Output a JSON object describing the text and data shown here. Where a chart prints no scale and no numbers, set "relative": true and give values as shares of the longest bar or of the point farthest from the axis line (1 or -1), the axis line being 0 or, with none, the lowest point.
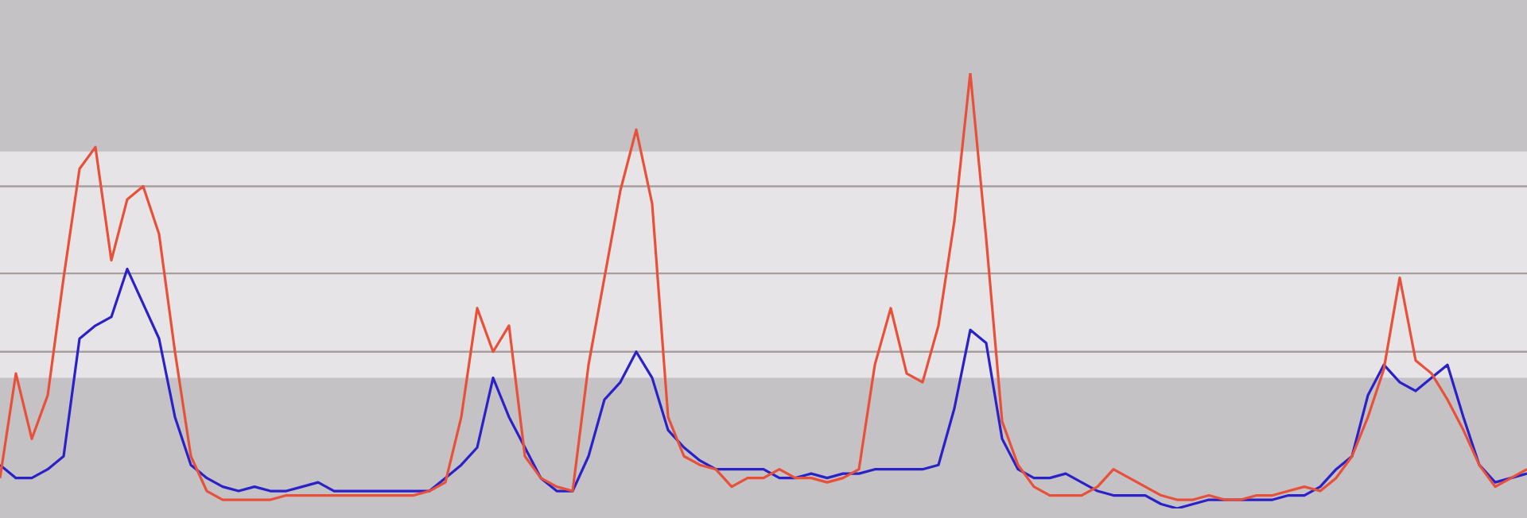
{
  "chart_data": {
    "type": "line",
    "relative": true,
    "legend": false,
    "marker": "none",
    "line_style": "solid",
    "categories": [
      null,
      null,
      null,
      null,
      null,
      null,
      null,
      null,
      null,
      null,
      null,
      null,
      null,
      null,
      null,
      null,
      null,
      null,
      null,
      null,
      null,
      null,
      null,
      null,
      null,
      null,
      null,
      null,
      null,
      null,
      null,
      null,
      null,
      null,
      null,
      null,
      null,
      null,
      null,
      null,
      null,
      null,
      null,
      null,
      null,
      null,
      null,
      null,
      null,
      null,
      null,
      null,
      null,
      null,
      null,
      null,
      null,
      null,
      null,
      null,
      null,
      null,
      null,
      null,
      null,
      null,
      null,
      null,
      null,
      null,
      null,
      null,
      null,
      null,
      null,
      null,
      null,
      null,
      null,
      null,
      null,
      null,
      null,
      null,
      null,
      null,
      null,
      null,
      null,
      null,
      null,
      null,
      null,
      null,
      null,
      null,
      null
    ],
    "series": [
      {
        "color": "#e8503a",
        "values": [
          0.07,
          0.31,
          0.16,
          0.26,
          0.53,
          0.78,
          0.83,
          0.57,
          0.71,
          0.74,
          0.63,
          0.36,
          0.12,
          0.04,
          0.02,
          0.02,
          0.02,
          0.02,
          0.03,
          0.03,
          0.03,
          0.03,
          0.03,
          0.03,
          0.03,
          0.03,
          0.03,
          0.04,
          0.06,
          0.21,
          0.46,
          0.36,
          0.42,
          0.12,
          0.07,
          0.05,
          0.04,
          0.33,
          0.53,
          0.73,
          0.87,
          0.7,
          0.21,
          0.12,
          0.1,
          0.09,
          0.05,
          0.07,
          0.07,
          0.09,
          0.07,
          0.07,
          0.06,
          0.07,
          0.09,
          0.33,
          0.46,
          0.31,
          0.29,
          0.42,
          0.66,
          1,
          0.62,
          0.2,
          0.1,
          0.05,
          0.03,
          0.03,
          0.03,
          0.05,
          0.09,
          0.07,
          0.05,
          0.03,
          0.02,
          0.02,
          0.03,
          0.02,
          0.02,
          0.03,
          0.03,
          0.04,
          0.05,
          0.04,
          0.07,
          0.12,
          0.21,
          0.32,
          0.53,
          0.34,
          0.31,
          0.25,
          0.18,
          0.1,
          0.05,
          0.07,
          0.09
        ]
      },
      {
        "color": "#2a22c8",
        "values": [
          0.1,
          0.07,
          0.07,
          0.09,
          0.12,
          0.39,
          0.42,
          0.44,
          0.55,
          0.47,
          0.39,
          0.21,
          0.1,
          0.07,
          0.05,
          0.04,
          0.05,
          0.04,
          0.04,
          0.05,
          0.06,
          0.04,
          0.04,
          0.04,
          0.04,
          0.04,
          0.04,
          0.04,
          0.07,
          0.1,
          0.14,
          0.3,
          0.21,
          0.14,
          0.07,
          0.04,
          0.04,
          0.12,
          0.25,
          0.29,
          0.36,
          0.3,
          0.18,
          0.14,
          0.11,
          0.09,
          0.09,
          0.09,
          0.09,
          0.07,
          0.07,
          0.08,
          0.07,
          0.08,
          0.08,
          0.09,
          0.09,
          0.09,
          0.09,
          0.1,
          0.23,
          0.41,
          0.38,
          0.16,
          0.09,
          0.07,
          0.07,
          0.08,
          0.06,
          0.04,
          0.03,
          0.03,
          0.03,
          0.01,
          0,
          0.01,
          0.02,
          0.02,
          0.02,
          0.02,
          0.02,
          0.03,
          0.03,
          0.05,
          0.09,
          0.12,
          0.26,
          0.33,
          0.29,
          0.27,
          0.3,
          0.33,
          0.21,
          0.1,
          0.06,
          0.07,
          0.08
        ]
      }
    ],
    "bands": [
      {
        "axis": "y",
        "from": 0.3,
        "to": 0.82,
        "color": "#e6e4e6"
      }
    ],
    "ref_lines": [
      {
        "axis": "y",
        "value": 0.74,
        "color": "#a89e9e"
      },
      {
        "axis": "y",
        "value": 0.54,
        "color": "#a89e9e"
      },
      {
        "axis": "y",
        "value": 0.36,
        "color": "#a89e9e"
      }
    ]
  }
}
